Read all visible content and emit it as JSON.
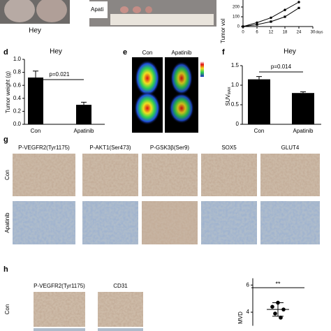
{
  "panel_letters": [
    "d",
    "e",
    "f",
    "g",
    "h"
  ],
  "panel_a": {
    "caption": "Hey"
  },
  "panel_b": {
    "caption": "Apati"
  },
  "panel_e": {
    "columns": [
      "Con",
      "Apatinib"
    ]
  },
  "panel_g": {
    "columns": [
      "P-VEGFR2(Tyr1175)",
      "P-AKT1(Ser473)",
      "P-GSK3β(Ser9)",
      "SOX5",
      "GLUT4"
    ],
    "rows": [
      "Con",
      "Apatinib"
    ]
  },
  "panel_h": {
    "columns": [
      "P-VEGFR2(Tyr1175)",
      "CD31"
    ],
    "rows": [
      "Con"
    ]
  },
  "chart_data": [
    {
      "type": "line",
      "ylabel": "Tumor vol",
      "xlabel": "days",
      "x": [
        0,
        6,
        12,
        18,
        24
      ],
      "xlim": [
        0,
        30
      ],
      "xticks": [
        0,
        6,
        12,
        18,
        24,
        30
      ],
      "ylim": [
        0,
        300
      ],
      "yticks": [
        0,
        100,
        200
      ],
      "series": [
        {
          "color": "#000000",
          "values": [
            0,
            40,
            90,
            170,
            250
          ]
        },
        {
          "color": "#000000",
          "values": [
            0,
            20,
            50,
            100,
            190
          ]
        }
      ]
    },
    {
      "type": "bar",
      "title": "Hey",
      "ylabel": "Tumor weight (g)",
      "categories": [
        "Con",
        "Apatinib"
      ],
      "values": [
        0.72,
        0.3
      ],
      "errors": [
        0.1,
        0.04
      ],
      "color": "#000000",
      "ylim": [
        0,
        1.0
      ],
      "yticks": [
        {
          "value": 0,
          "label": "0.0"
        },
        0.2,
        0.4,
        0.6,
        0.8,
        {
          "value": 1,
          "label": "1.0"
        }
      ],
      "annotation": "p=0.021"
    },
    {
      "type": "bar",
      "title": "Hey",
      "ylabel": "SUV",
      "ylabel_sub": "MAX",
      "categories": [
        "Con",
        "Apatinib"
      ],
      "values": [
        1.15,
        0.8
      ],
      "errors": [
        0.07,
        0.03
      ],
      "color": "#000000",
      "ylim": [
        0,
        1.5
      ],
      "yticks": [
        0,
        0.5,
        {
          "value": 1,
          "label": "1.0"
        },
        1.5
      ],
      "annotation": "p=0.014"
    },
    {
      "type": "scatter",
      "ylabel": "MVD",
      "values": [
        4.7,
        4.4,
        4.2,
        3.9,
        3.6
      ],
      "mean": 4.2,
      "sd": 0.5,
      "ylim": [
        3,
        6.5
      ],
      "yticks": [
        4,
        6
      ],
      "annotation": "**"
    }
  ]
}
